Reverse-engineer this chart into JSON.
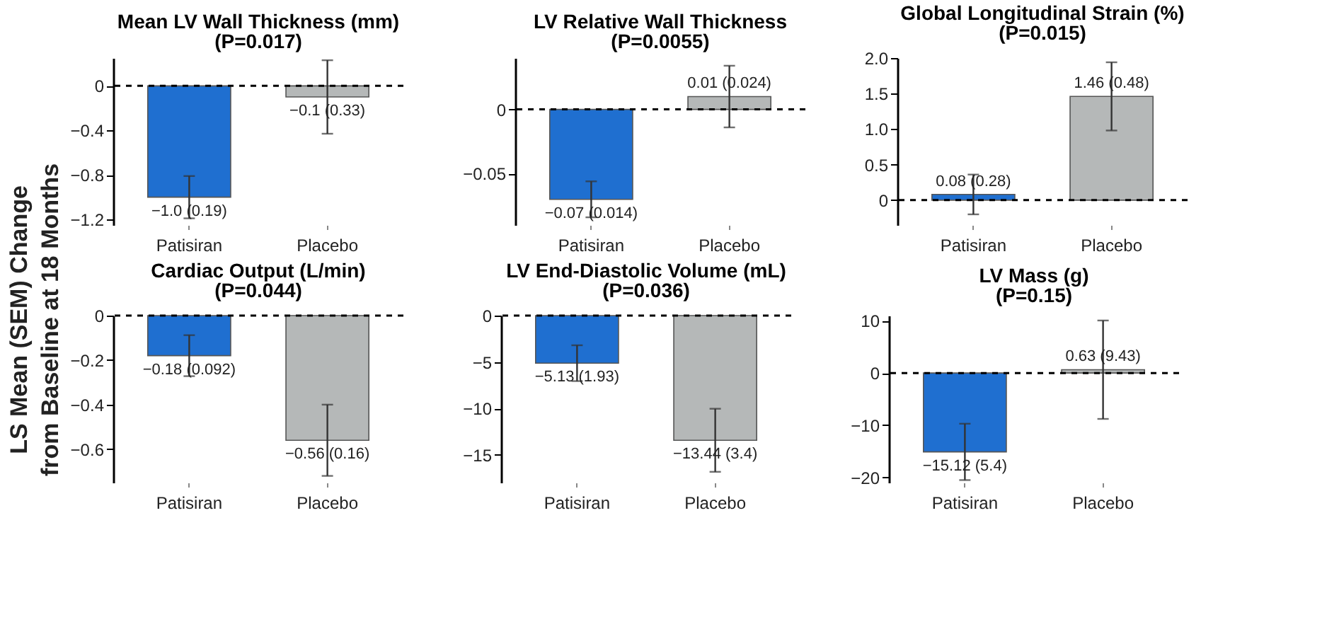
{
  "chart_data": [
    {
      "type": "bar",
      "title": "Mean LV Wall Thickness (mm)",
      "subtitle": "(P=0.017)",
      "ylabel": "LS Mean (SEM) Change\nfrom Baseline at 18 Months",
      "categories": [
        "Patisiran",
        "Placebo"
      ],
      "values": [
        -1.0,
        -0.1
      ],
      "colors": [
        "#1f6fd0",
        "#b5b8b8"
      ],
      "errors": [
        0.19,
        0.33
      ],
      "value_labels": [
        "−1.0 (0.19)",
        "−0.1 (0.33)"
      ],
      "ylim": [
        -1.25,
        0.25
      ],
      "yticks": [
        0,
        -0.4,
        -0.8,
        -1.2
      ],
      "ref_lines": [
        {
          "axis": "y",
          "value": 0,
          "line_style": "dashed",
          "color": "#000000"
        }
      ],
      "grid": false,
      "legend": false
    },
    {
      "type": "bar",
      "title": "LV Relative Wall Thickness",
      "subtitle": "(P=0.0055)",
      "categories": [
        "Patisiran",
        "Placebo"
      ],
      "values": [
        -0.07,
        0.01
      ],
      "colors": [
        "#1f6fd0",
        "#b5b8b8"
      ],
      "errors": [
        0.014,
        0.024
      ],
      "value_labels": [
        "−0.07 (0.014)",
        "0.01 (0.024)"
      ],
      "ylim": [
        -0.09,
        0.04
      ],
      "yticks": [
        0,
        -0.05
      ],
      "ref_lines": [
        {
          "axis": "y",
          "value": 0,
          "line_style": "dashed",
          "color": "#000000"
        }
      ],
      "grid": false,
      "legend": false
    },
    {
      "type": "bar",
      "title": "Global Longitudinal Strain (%)",
      "subtitle": "(P=0.015)",
      "categories": [
        "Patisiran",
        "Placebo"
      ],
      "values": [
        0.08,
        1.46
      ],
      "colors": [
        "#1f6fd0",
        "#b5b8b8"
      ],
      "errors": [
        0.28,
        0.48
      ],
      "value_labels": [
        "0.08 (0.28)",
        "1.46 (0.48)"
      ],
      "ylim": [
        -0.35,
        2.0
      ],
      "yticks": [
        0,
        0.5,
        {
          "value": 1,
          "label": "1.0"
        },
        1.5,
        {
          "value": 2,
          "label": "2.0"
        }
      ],
      "ref_lines": [
        {
          "axis": "y",
          "value": 0,
          "line_style": "dashed",
          "color": "#000000"
        }
      ],
      "grid": false,
      "legend": false
    },
    {
      "type": "bar",
      "title": "Cardiac Output (L/min)",
      "subtitle": "(P=0.044)",
      "categories": [
        "Patisiran",
        "Placebo"
      ],
      "values": [
        -0.18,
        -0.56
      ],
      "colors": [
        "#1f6fd0",
        "#b5b8b8"
      ],
      "errors": [
        0.092,
        0.16
      ],
      "value_labels": [
        "−0.18 (0.092)",
        "−0.56 (0.16)"
      ],
      "ylim": [
        -0.75,
        0
      ],
      "yticks": [
        0,
        -0.2,
        -0.4,
        -0.6
      ],
      "ref_lines": [
        {
          "axis": "y",
          "value": 0,
          "line_style": "dashed",
          "color": "#000000"
        }
      ],
      "grid": false,
      "legend": false
    },
    {
      "type": "bar",
      "title": "LV End-Diastolic Volume (mL)",
      "subtitle": "(P=0.036)",
      "categories": [
        "Patisiran",
        "Placebo"
      ],
      "values": [
        -5.13,
        -13.44
      ],
      "colors": [
        "#1f6fd0",
        "#b5b8b8"
      ],
      "errors": [
        1.93,
        3.4
      ],
      "value_labels": [
        "−5.13 (1.93)",
        "−13.44 (3.4)"
      ],
      "ylim": [
        -18,
        0
      ],
      "yticks": [
        0,
        -5,
        -10,
        -15
      ],
      "ref_lines": [
        {
          "axis": "y",
          "value": 0,
          "line_style": "dashed",
          "color": "#000000"
        }
      ],
      "grid": false,
      "legend": false
    },
    {
      "type": "bar",
      "title": "LV Mass (g)",
      "subtitle": "(P=0.15)",
      "categories": [
        "Patisiran",
        "Placebo"
      ],
      "values": [
        -15.12,
        0.63
      ],
      "colors": [
        "#1f6fd0",
        "#b5b8b8"
      ],
      "errors": [
        5.4,
        9.43
      ],
      "value_labels": [
        "−15.12 (5.4)",
        "0.63 (9.43)"
      ],
      "ylim": [
        -21,
        11
      ],
      "yticks": [
        10,
        0,
        -10,
        -20
      ],
      "ref_lines": [
        {
          "axis": "y",
          "value": 0,
          "line_style": "dashed",
          "color": "#000000"
        }
      ],
      "grid": false,
      "legend": false
    }
  ]
}
